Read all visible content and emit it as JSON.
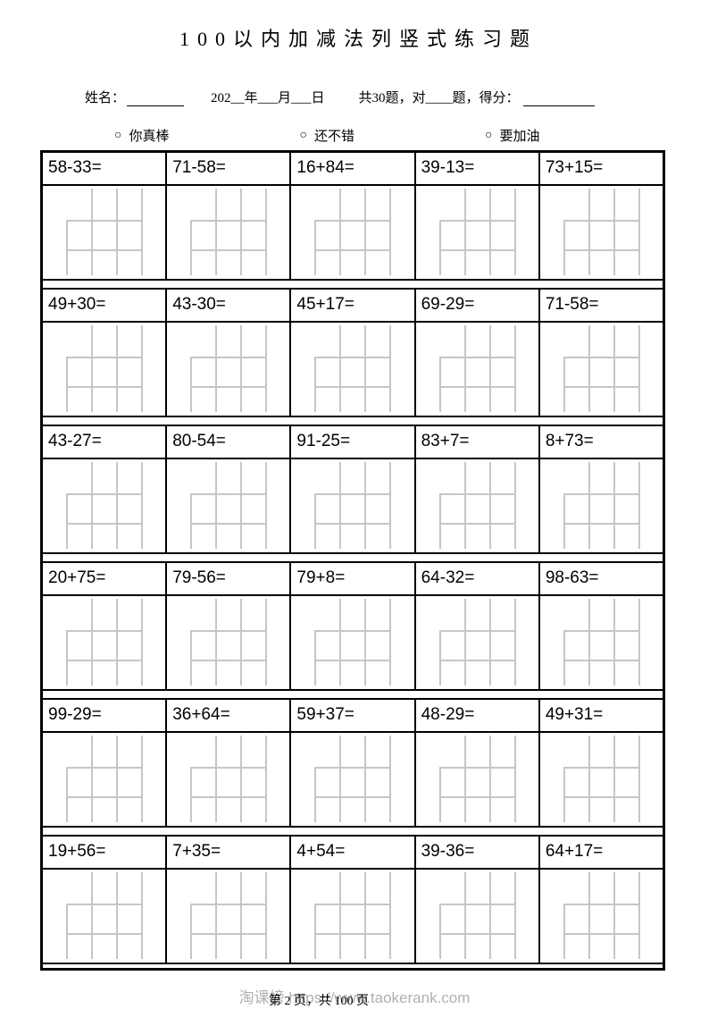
{
  "title": "100以内加减法列竖式练习题",
  "header": {
    "name_label": "姓名：",
    "date_text": "202__年___月___日",
    "total_text": "共30题，对____题，得分："
  },
  "ratings": [
    {
      "circle": "○",
      "label": "你真棒"
    },
    {
      "circle": "○",
      "label": "还不错"
    },
    {
      "circle": "○",
      "label": "要加油"
    }
  ],
  "problems": [
    [
      "58-33=",
      "71-58=",
      "16+84=",
      "39-13=",
      "73+15="
    ],
    [
      "49+30=",
      "43-30=",
      "45+17=",
      "69-29=",
      "71-58="
    ],
    [
      "43-27=",
      "80-54=",
      "91-25=",
      "83+7=",
      "8+73="
    ],
    [
      "20+75=",
      "79-56=",
      "79+8=",
      "64-32=",
      "98-63="
    ],
    [
      "99-29=",
      "36+64=",
      "59+37=",
      "48-29=",
      "49+31="
    ],
    [
      "19+56=",
      "7+35=",
      "4+54=",
      "39-36=",
      "64+17="
    ]
  ],
  "footer": {
    "watermark": "淘课榜 https://www.taokerank.com",
    "page_text": "第 2 页，共 100 页"
  },
  "colors": {
    "border": "#000000",
    "grid_line": "#c6c6c6",
    "watermark": "#b0b0b0"
  }
}
